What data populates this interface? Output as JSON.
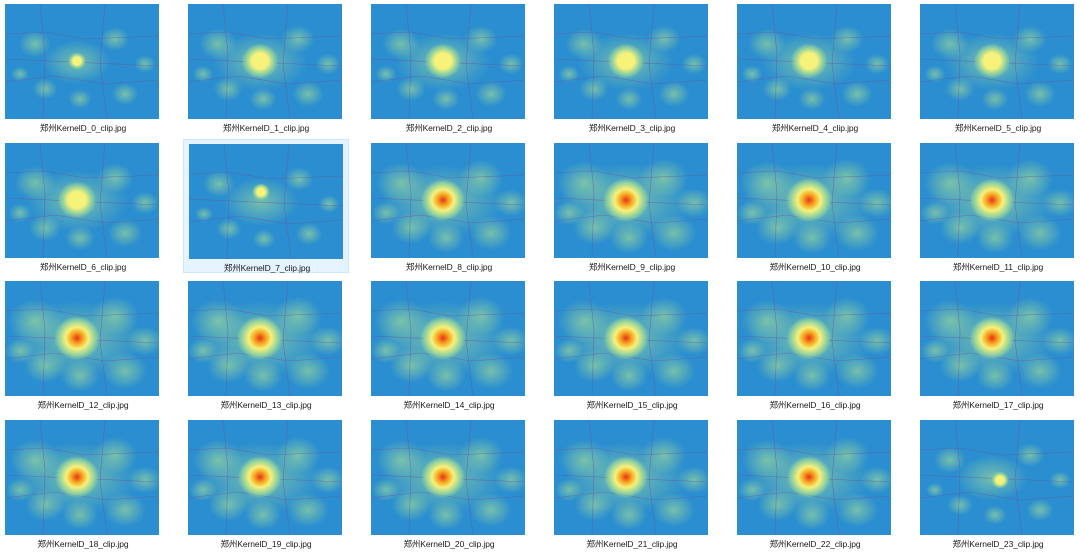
{
  "files": [
    {
      "name": "郑州KernelD_0_clip.jpg",
      "intensity": 0.1,
      "selected": false
    },
    {
      "name": "郑州KernelD_1_clip.jpg",
      "intensity": 0.45,
      "selected": false
    },
    {
      "name": "郑州KernelD_2_clip.jpg",
      "intensity": 0.45,
      "selected": false
    },
    {
      "name": "郑州KernelD_3_clip.jpg",
      "intensity": 0.45,
      "selected": false
    },
    {
      "name": "郑州KernelD_4_clip.jpg",
      "intensity": 0.45,
      "selected": false
    },
    {
      "name": "郑州KernelD_5_clip.jpg",
      "intensity": 0.45,
      "selected": false
    },
    {
      "name": "郑州KernelD_6_clip.jpg",
      "intensity": 0.55,
      "selected": false
    },
    {
      "name": "郑州KernelD_7_clip.jpg",
      "intensity": 0.2,
      "selected": true
    },
    {
      "name": "郑州KernelD_8_clip.jpg",
      "intensity": 0.8,
      "selected": false
    },
    {
      "name": "郑州KernelD_9_clip.jpg",
      "intensity": 0.9,
      "selected": false
    },
    {
      "name": "郑州KernelD_10_clip.jpg",
      "intensity": 0.9,
      "selected": false
    },
    {
      "name": "郑州KernelD_11_clip.jpg",
      "intensity": 0.85,
      "selected": false
    },
    {
      "name": "郑州KernelD_12_clip.jpg",
      "intensity": 0.9,
      "selected": false
    },
    {
      "name": "郑州KernelD_13_clip.jpg",
      "intensity": 0.9,
      "selected": false
    },
    {
      "name": "郑州KernelD_14_clip.jpg",
      "intensity": 0.9,
      "selected": false
    },
    {
      "name": "郑州KernelD_15_clip.jpg",
      "intensity": 0.85,
      "selected": false
    },
    {
      "name": "郑州KernelD_16_clip.jpg",
      "intensity": 0.85,
      "selected": false
    },
    {
      "name": "郑州KernelD_17_clip.jpg",
      "intensity": 0.85,
      "selected": false
    },
    {
      "name": "郑州KernelD_18_clip.jpg",
      "intensity": 0.8,
      "selected": false
    },
    {
      "name": "郑州KernelD_19_clip.jpg",
      "intensity": 0.8,
      "selected": false
    },
    {
      "name": "郑州KernelD_20_clip.jpg",
      "intensity": 0.8,
      "selected": false
    },
    {
      "name": "郑州KernelD_21_clip.jpg",
      "intensity": 0.8,
      "selected": false
    },
    {
      "name": "郑州KernelD_22_clip.jpg",
      "intensity": 0.8,
      "selected": false
    },
    {
      "name": "郑州KernelD_23_clip.jpg",
      "intensity": 0.15,
      "selected": false
    }
  ],
  "colors": {
    "background_blue": "#2a8ed0",
    "halo_green": "#8fd0a0",
    "halo_yellow": "#f6f27a",
    "core_orange": "#f5a21e",
    "core_red": "#e8321c",
    "road_line": "#6a5aa0",
    "selection_bg": "#e5f3ff"
  },
  "thumbnail_icon": "heatmap-image-icon"
}
